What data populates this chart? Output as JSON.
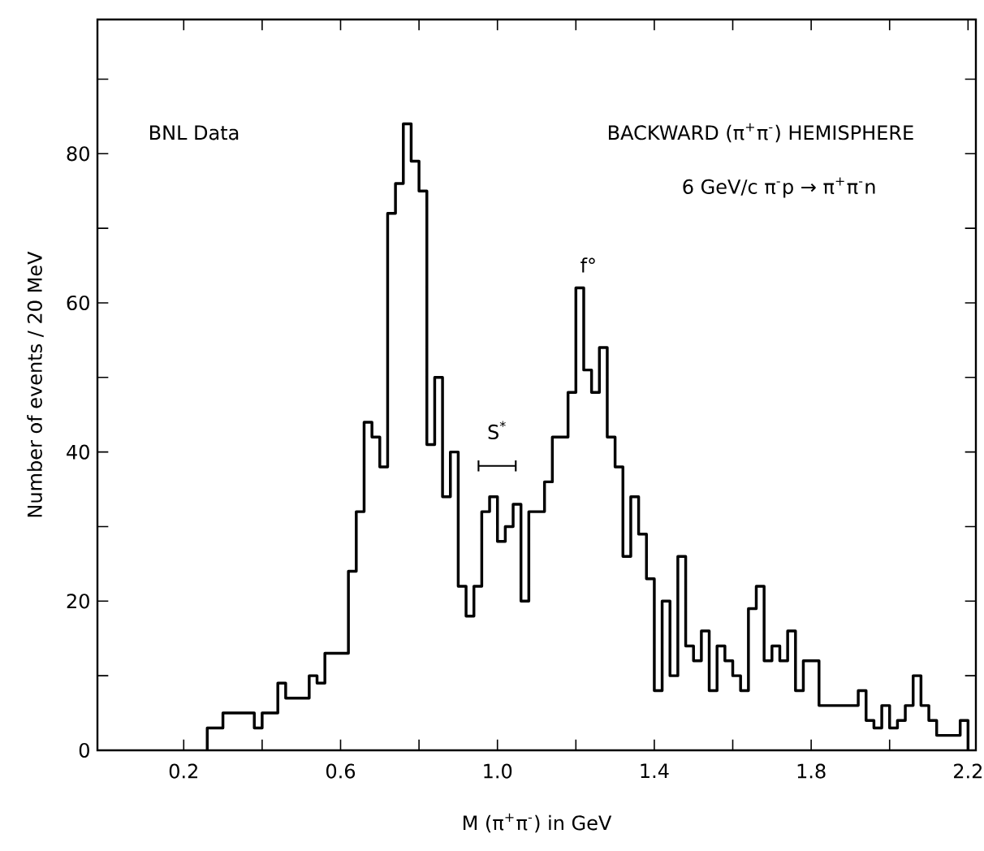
{
  "chart_data": {
    "type": "histogram",
    "xlabel": "M (π$^{+}$π$^{-}$) in GeV",
    "ylabel": "Number of events / 20 MeV",
    "color": "#000000",
    "bins": [
      0.26,
      0.28,
      0.3,
      0.32,
      0.34,
      0.36,
      0.38,
      0.4,
      0.42,
      0.44,
      0.46,
      0.48,
      0.5,
      0.52,
      0.54,
      0.56,
      0.58,
      0.6,
      0.62,
      0.64,
      0.66,
      0.68,
      0.7,
      0.72,
      0.74,
      0.76,
      0.78,
      0.8,
      0.82,
      0.84,
      0.86,
      0.88,
      0.9,
      0.92,
      0.94,
      0.96,
      0.98,
      1.0,
      1.02,
      1.04,
      1.06,
      1.08,
      1.1,
      1.12,
      1.14,
      1.16,
      1.18,
      1.2,
      1.22,
      1.24,
      1.26,
      1.28,
      1.3,
      1.32,
      1.34,
      1.36,
      1.38,
      1.4,
      1.42,
      1.44,
      1.46,
      1.48,
      1.5,
      1.52,
      1.54,
      1.56,
      1.58,
      1.6,
      1.62,
      1.64,
      1.66,
      1.68,
      1.7,
      1.72,
      1.74,
      1.76,
      1.78,
      1.8,
      1.82,
      1.84,
      1.86,
      1.88,
      1.9,
      1.92,
      1.94,
      1.96,
      1.98,
      2.0,
      2.02,
      2.04,
      2.06,
      2.08,
      2.1,
      2.12,
      2.14,
      2.16,
      2.18,
      2.2
    ],
    "values": [
      3,
      3,
      5,
      5,
      5,
      5,
      3,
      5,
      5,
      9,
      7,
      7,
      7,
      10,
      9,
      13,
      13,
      13,
      24,
      32,
      44,
      42,
      38,
      72,
      76,
      84,
      79,
      75,
      41,
      50,
      34,
      40,
      22,
      18,
      22,
      32,
      34,
      28,
      30,
      33,
      20,
      32,
      32,
      36,
      42,
      42,
      48,
      62,
      51,
      48,
      54,
      42,
      38,
      26,
      34,
      29,
      23,
      8,
      20,
      10,
      26,
      14,
      12,
      16,
      8,
      14,
      12,
      10,
      8,
      19,
      22,
      12,
      14,
      12,
      16,
      8,
      12,
      12,
      6,
      6,
      6,
      6,
      6,
      8,
      4,
      3,
      6,
      3,
      4,
      6,
      10,
      6,
      4,
      2,
      2,
      2,
      4
    ],
    "xlim": [
      -0.02,
      2.22
    ],
    "ylim": [
      0,
      98
    ],
    "xticks": [
      0.2,
      {
        "value": 0.4,
        "label": null
      },
      0.6,
      {
        "value": 0.8,
        "label": null
      },
      {
        "value": 1.0,
        "label": "1.0"
      },
      {
        "value": 1.2,
        "label": null
      },
      1.4,
      {
        "value": 1.6,
        "label": null
      },
      1.8,
      {
        "value": 2.0,
        "label": null
      },
      2.2
    ],
    "yticks": [
      0,
      {
        "value": 10,
        "label": null
      },
      20,
      {
        "value": 30,
        "label": null
      },
      40,
      {
        "value": 50,
        "label": null
      },
      60,
      {
        "value": 70,
        "label": null
      },
      80,
      {
        "value": 90,
        "label": null
      }
    ],
    "annotations": [
      "BNL Data",
      "BACKWARD (π$^{+}$π$^{-}$) HEMISPHERE",
      "6 GeV/c π$^{-}$p → π$^{+}$π$^{-}$n",
      {
        "text": "f°",
        "x": 1.21,
        "y": 62
      },
      "S$^{*}$"
    ]
  }
}
